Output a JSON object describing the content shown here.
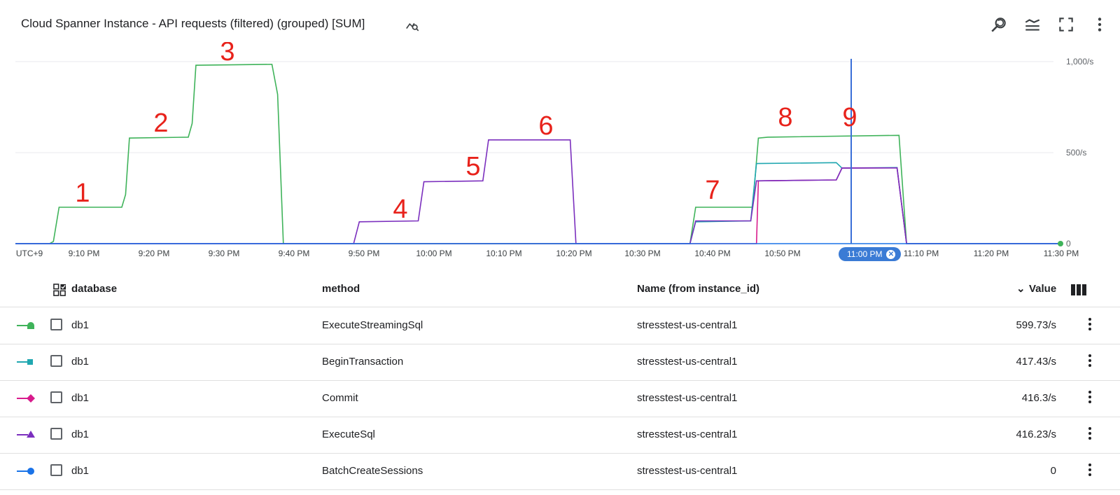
{
  "header": {
    "title": "Cloud Spanner Instance - API requests (filtered) (grouped) [SUM]",
    "title_icon": "chart-search-icon",
    "toolbar": [
      {
        "name": "zoom-reset-icon"
      },
      {
        "name": "legend-toggle-icon"
      },
      {
        "name": "fullscreen-icon"
      },
      {
        "name": "more-vert-icon"
      }
    ]
  },
  "chart_data": {
    "type": "line",
    "title": "Cloud Spanner Instance - API requests (filtered) (grouped) [SUM]",
    "x_ticks": [
      "UTC+9",
      "9:10 PM",
      "9:20 PM",
      "9:30 PM",
      "9:40 PM",
      "9:50 PM",
      "10:00 PM",
      "10:10 PM",
      "10:20 PM",
      "10:30 PM",
      "10:40 PM",
      "10:50 PM",
      "11:00 PM",
      "11:10 PM",
      "11:20 PM",
      "11:30 PM"
    ],
    "y_ticks": [
      "1,000/s",
      "500/s",
      "0"
    ],
    "ylim": [
      0,
      1000
    ],
    "cursor_label": "11:00 PM",
    "annotations": [
      "1",
      "2",
      "3",
      "4",
      "5",
      "6",
      "7",
      "8",
      "9"
    ],
    "series": [
      {
        "name": "ExecuteStreamingSql",
        "color": "#3fb35a",
        "points": [
          [
            0,
            0
          ],
          [
            1.8,
            0
          ],
          [
            2,
            12
          ],
          [
            2.3,
            200
          ],
          [
            5.6,
            200
          ],
          [
            5.8,
            270
          ],
          [
            6,
            580
          ],
          [
            9.1,
            585
          ],
          [
            9.3,
            660
          ],
          [
            9.5,
            980
          ],
          [
            13.5,
            985
          ],
          [
            13.8,
            820
          ],
          [
            14.1,
            0
          ],
          [
            35.5,
            0
          ],
          [
            35.8,
            200
          ],
          [
            38.8,
            200
          ],
          [
            39.1,
            580
          ],
          [
            39.6,
            585
          ],
          [
            46.5,
            595
          ],
          [
            46.9,
            0
          ],
          [
            55,
            0
          ]
        ]
      },
      {
        "name": "BeginTransaction",
        "color": "#20a7b0",
        "points": [
          [
            0,
            0
          ],
          [
            35.5,
            0
          ],
          [
            35.8,
            120
          ],
          [
            38.7,
            125
          ],
          [
            39,
            440
          ],
          [
            43.2,
            445
          ],
          [
            43.5,
            415
          ],
          [
            46.4,
            418
          ],
          [
            46.9,
            0
          ],
          [
            55,
            0
          ]
        ]
      },
      {
        "name": "Commit",
        "color": "#d81b8c",
        "points": [
          [
            0,
            0
          ],
          [
            39,
            0
          ],
          [
            39.1,
            345
          ],
          [
            43.2,
            350
          ],
          [
            43.5,
            415
          ],
          [
            46.4,
            416
          ],
          [
            46.9,
            0
          ],
          [
            55,
            0
          ]
        ]
      },
      {
        "name": "ExecuteSql",
        "color": "#7b2fbe",
        "points": [
          [
            0,
            0
          ],
          [
            17.8,
            0
          ],
          [
            18.1,
            120
          ],
          [
            21.2,
            125
          ],
          [
            21.5,
            340
          ],
          [
            24.6,
            345
          ],
          [
            24.9,
            570
          ],
          [
            29.2,
            570
          ],
          [
            29.5,
            0
          ],
          [
            35.5,
            0
          ],
          [
            35.8,
            125
          ],
          [
            38.7,
            125
          ],
          [
            39,
            345
          ],
          [
            43.2,
            350
          ],
          [
            43.5,
            415
          ],
          [
            46.4,
            416
          ],
          [
            46.9,
            0
          ],
          [
            55,
            0
          ]
        ]
      },
      {
        "name": "BatchCreateSessions",
        "color": "#1a73e8",
        "points": [
          [
            0,
            0
          ],
          [
            55,
            0
          ]
        ]
      }
    ]
  },
  "table": {
    "columns": {
      "database": "database",
      "method": "method",
      "name": "Name (from instance_id)",
      "value": "Value"
    },
    "rows": [
      {
        "database": "db1",
        "method": "ExecuteStreamingSql",
        "name": "stresstest-us-central1",
        "value": "599.73/s",
        "color": "#3fb35a",
        "marker": "semicircle"
      },
      {
        "database": "db1",
        "method": "BeginTransaction",
        "name": "stresstest-us-central1",
        "value": "417.43/s",
        "color": "#20a7b0",
        "marker": "square"
      },
      {
        "database": "db1",
        "method": "Commit",
        "name": "stresstest-us-central1",
        "value": "416.3/s",
        "color": "#d81b8c",
        "marker": "diamond"
      },
      {
        "database": "db1",
        "method": "ExecuteSql",
        "name": "stresstest-us-central1",
        "value": "416.23/s",
        "color": "#7b2fbe",
        "marker": "triangle"
      },
      {
        "database": "db1",
        "method": "BatchCreateSessions",
        "name": "stresstest-us-central1",
        "value": "0",
        "color": "#1a73e8",
        "marker": "circle"
      }
    ]
  }
}
